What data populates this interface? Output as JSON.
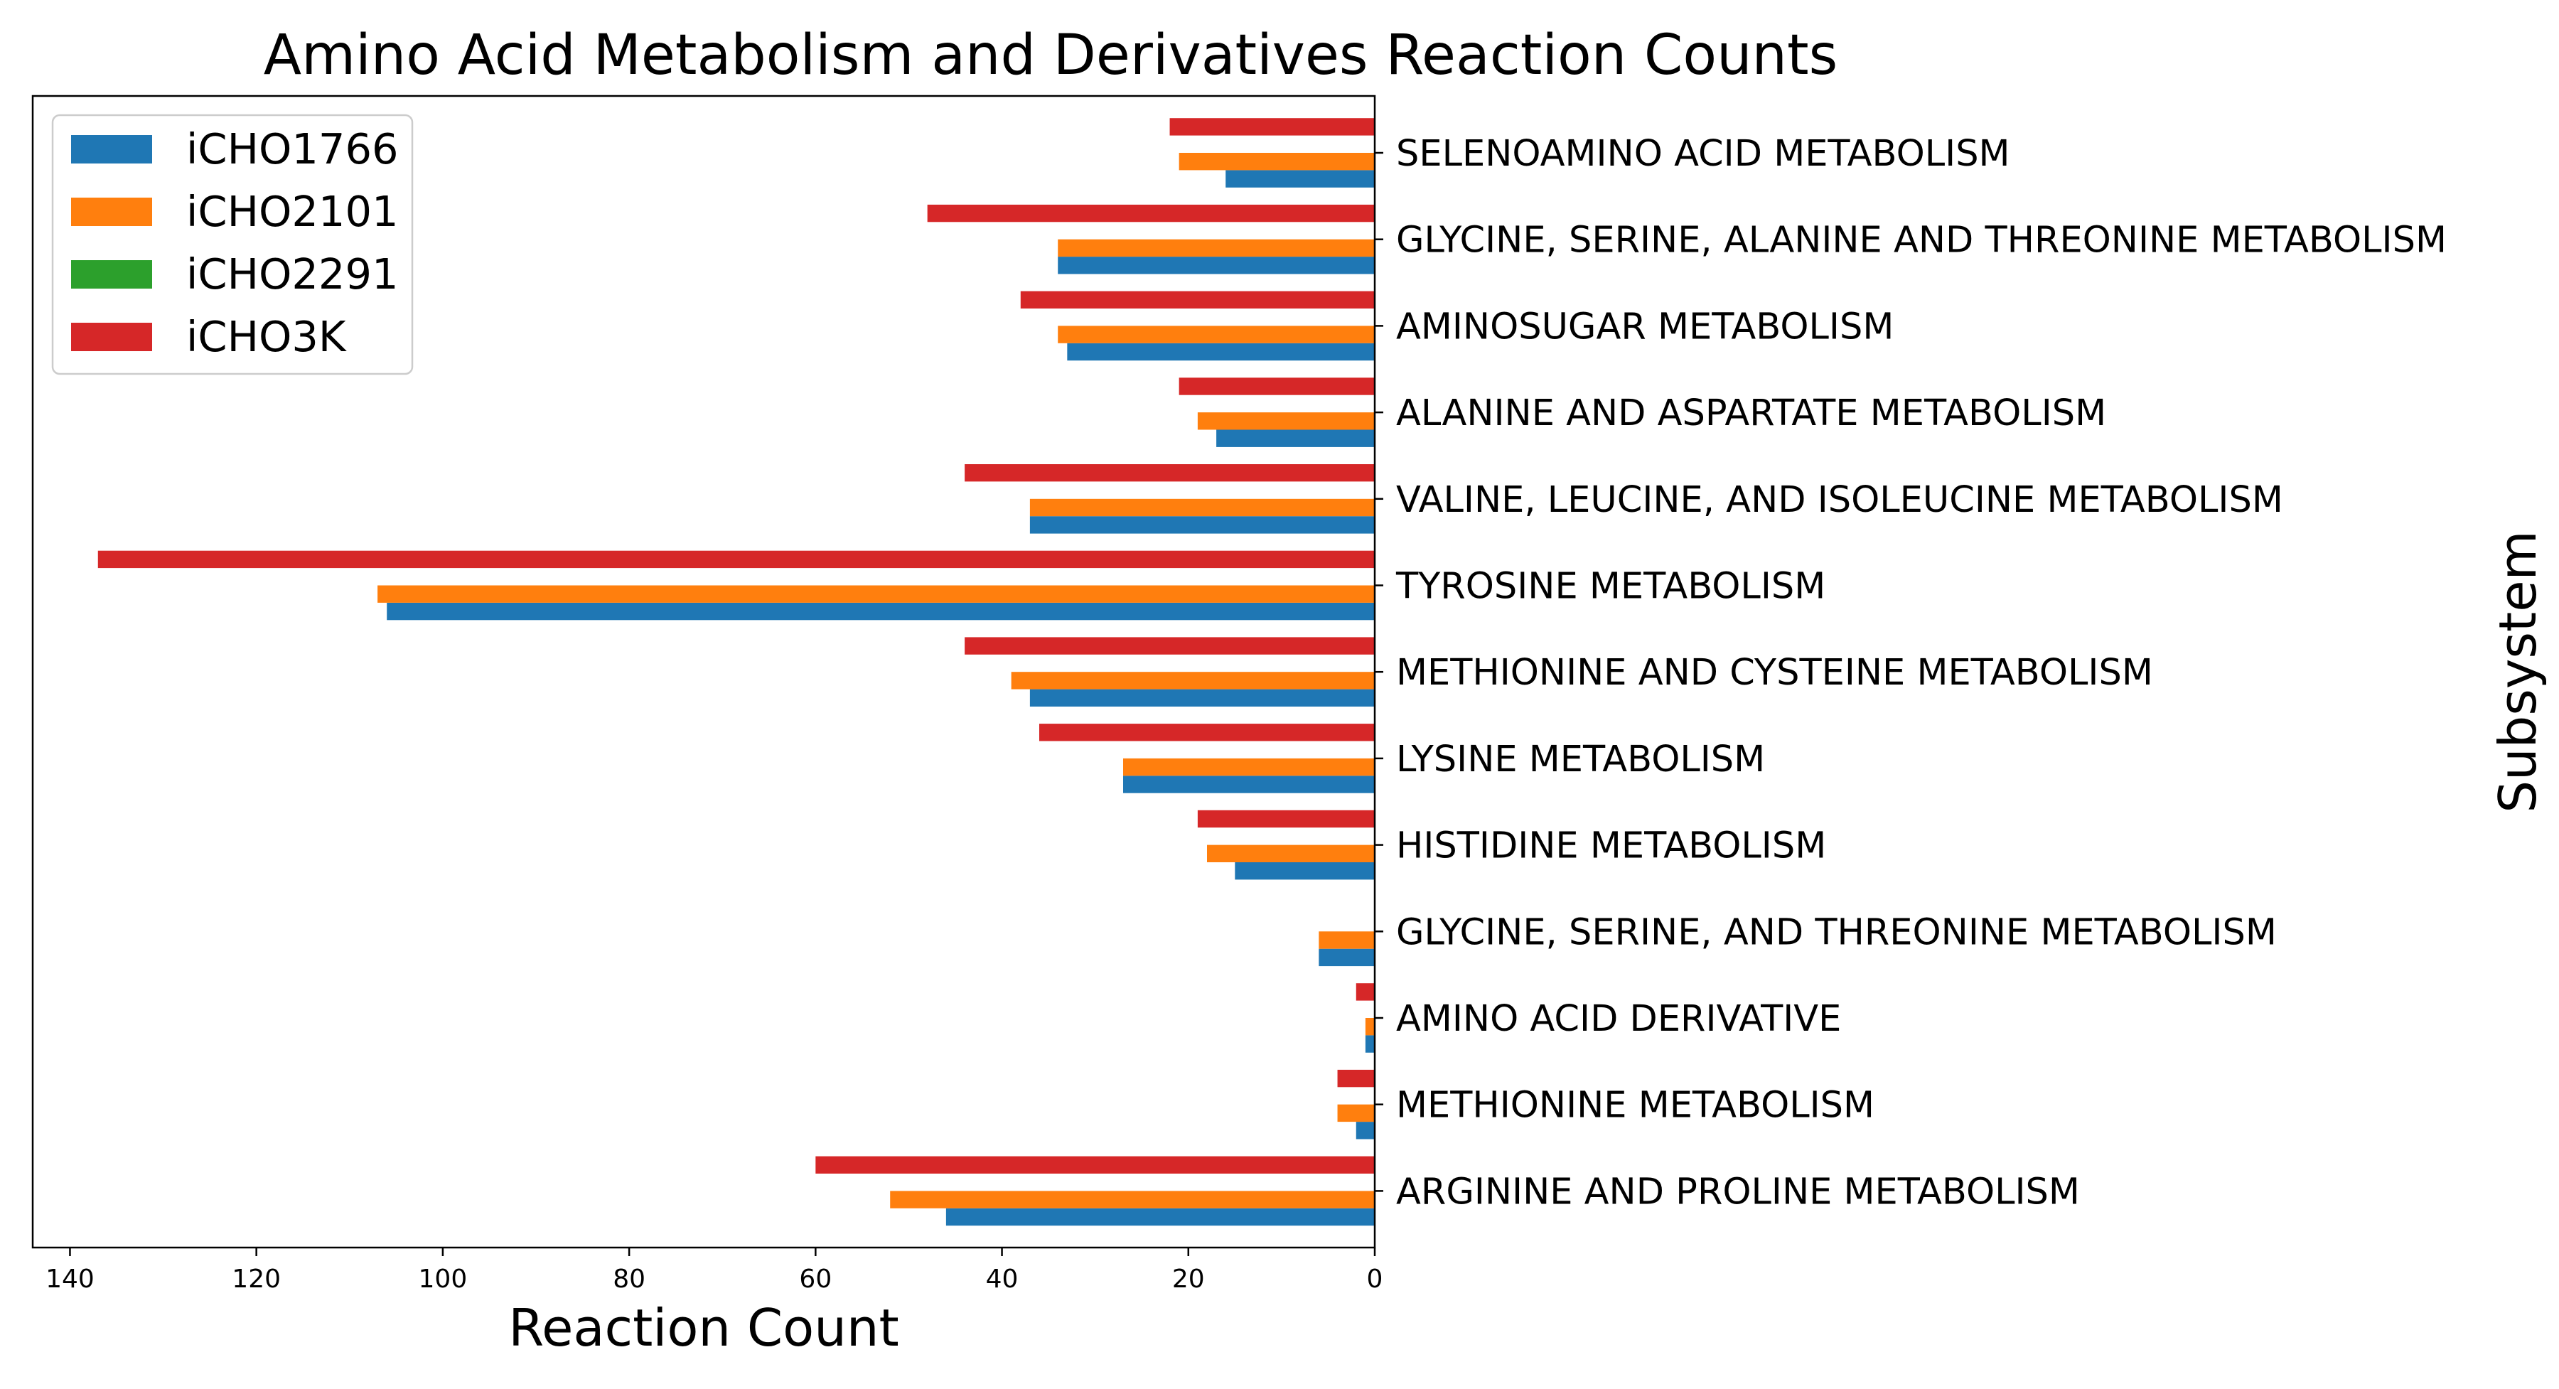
{
  "chart_data": {
    "type": "bar",
    "orientation": "horizontal",
    "title": "Amino Acid Metabolism and Derivatives Reaction Counts",
    "xlabel": "Reaction Count",
    "ylabel": "Subsystem",
    "x_inverted": true,
    "xlim": [
      0,
      144
    ],
    "xticks": [
      0,
      20,
      40,
      60,
      80,
      100,
      120,
      140
    ],
    "legend_position": "top-left",
    "categories": [
      "SELENOAMINO ACID METABOLISM",
      "GLYCINE, SERINE, ALANINE AND THREONINE METABOLISM",
      "AMINOSUGAR METABOLISM",
      "ALANINE AND ASPARTATE METABOLISM",
      "VALINE, LEUCINE, AND ISOLEUCINE METABOLISM",
      "TYROSINE METABOLISM",
      "METHIONINE AND CYSTEINE METABOLISM",
      "LYSINE METABOLISM",
      "HISTIDINE METABOLISM",
      "GLYCINE, SERINE, AND THREONINE METABOLISM",
      "AMINO ACID DERIVATIVE",
      "METHIONINE METABOLISM",
      "ARGININE AND PROLINE METABOLISM"
    ],
    "series": [
      {
        "name": "iCHO1766",
        "color": "#1f77b4",
        "values": [
          16,
          34,
          33,
          17,
          37,
          106,
          37,
          27,
          15,
          6,
          1,
          2,
          46
        ]
      },
      {
        "name": "iCHO2101",
        "color": "#ff7f0e",
        "values": [
          21,
          34,
          34,
          19,
          37,
          107,
          39,
          27,
          18,
          6,
          1,
          4,
          52
        ]
      },
      {
        "name": "iCHO2291",
        "color": "#2ca02c",
        "values": [
          0,
          0,
          0,
          0,
          0,
          0,
          0,
          0,
          0,
          0,
          0,
          0,
          0
        ]
      },
      {
        "name": "iCHO3K",
        "color": "#d62728",
        "values": [
          22,
          48,
          38,
          21,
          44,
          137,
          44,
          36,
          19,
          0,
          2,
          4,
          60
        ]
      }
    ]
  }
}
